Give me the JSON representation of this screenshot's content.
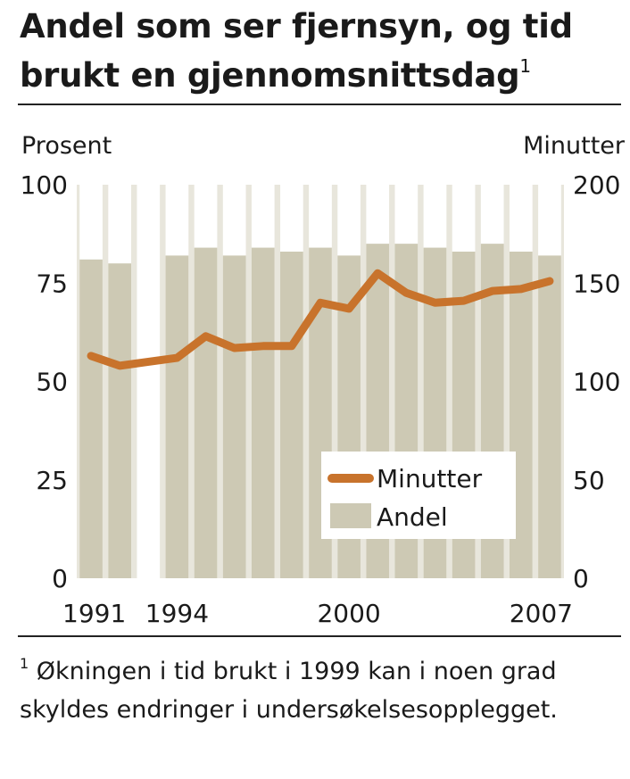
{
  "title": "Andel som ser fjernsyn, og tid brukt en gjennomsnittsdag",
  "title_footnote_mark": "1",
  "footnote_mark": "1",
  "footnote": "Økningen i tid brukt i 1999 kan i noen grad skyldes endringer i undersøkels­esopplegget.",
  "chart_data": {
    "type": "bar+line",
    "years": [
      1991,
      1992,
      1993,
      1994,
      1995,
      1996,
      1997,
      1998,
      1999,
      2000,
      2001,
      2002,
      2003,
      2004,
      2005,
      2006,
      2007
    ],
    "x_tick_labels": [
      "1991",
      "1994",
      "2000",
      "2007"
    ],
    "left_axis": {
      "label": "Prosent",
      "ylim": [
        0,
        100
      ],
      "ticks": [
        0,
        25,
        50,
        75,
        100
      ]
    },
    "right_axis": {
      "label": "Minutter",
      "ylim": [
        0,
        200
      ],
      "ticks": [
        0,
        50,
        100,
        150,
        200
      ]
    },
    "series": [
      {
        "name": "Andel",
        "kind": "bar",
        "axis": "left",
        "color": "#cdc9b4",
        "values": [
          81,
          80,
          null,
          82,
          84,
          82,
          84,
          83,
          84,
          82,
          85,
          85,
          84,
          83,
          85,
          83,
          82
        ]
      },
      {
        "name": "Minutter",
        "kind": "line",
        "axis": "right",
        "color": "#c8732c",
        "values": [
          113,
          108,
          110,
          112,
          123,
          117,
          118,
          118,
          140,
          137,
          155,
          145,
          140,
          141,
          146,
          147,
          151
        ]
      }
    ],
    "legend": {
      "position": "inside-bottom-right",
      "items": [
        "Minutter",
        "Andel"
      ]
    },
    "grid": false
  }
}
